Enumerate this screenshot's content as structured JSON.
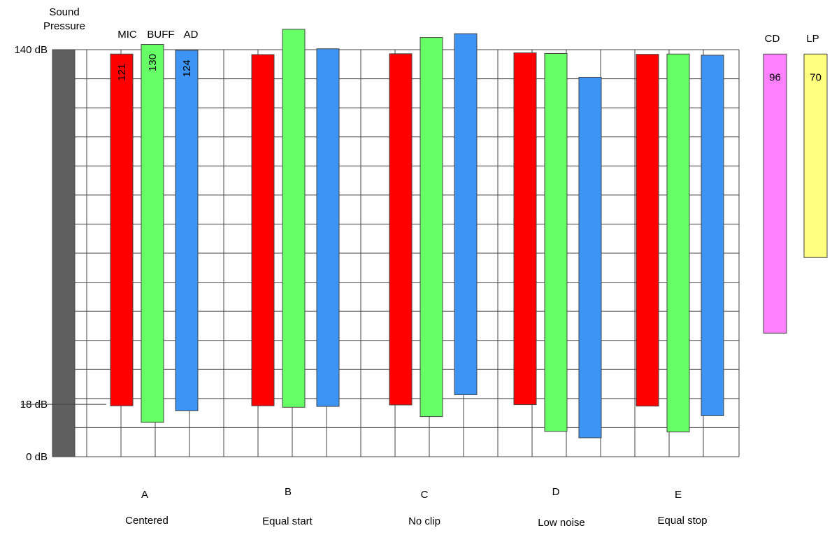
{
  "chart_data": {
    "type": "bar",
    "title": "Sound Pressure",
    "axis": {
      "ymin": 0,
      "ymax": 140,
      "ticks": [
        {
          "value": 140,
          "label": "140 dB"
        },
        {
          "value": 18,
          "label": "18 dB"
        },
        {
          "value": 0,
          "label": "0 dB"
        }
      ],
      "grid": true
    },
    "series": [
      {
        "name": "MIC",
        "color": "#ff0000"
      },
      {
        "name": "BUFF",
        "color": "#66ff66"
      },
      {
        "name": "AD",
        "color": "#3d94f5"
      }
    ],
    "groups": [
      {
        "letter": "A",
        "label": "Centered",
        "ranges": [
          {
            "low": 17.5,
            "high": 138.5,
            "range_label": "121"
          },
          {
            "low": 11.8,
            "high": 141.8,
            "range_label": "130"
          },
          {
            "low": 15.8,
            "high": 139.8,
            "range_label": "124"
          }
        ]
      },
      {
        "letter": "B",
        "label": "Equal start",
        "ranges": [
          {
            "low": 17.5,
            "high": 138.3
          },
          {
            "low": 17.0,
            "high": 147.0
          },
          {
            "low": 17.3,
            "high": 140.3
          }
        ]
      },
      {
        "letter": "C",
        "label": "No clip",
        "ranges": [
          {
            "low": 17.8,
            "high": 138.6
          },
          {
            "low": 13.8,
            "high": 144.2
          },
          {
            "low": 21.3,
            "high": 145.5
          }
        ]
      },
      {
        "letter": "D",
        "label": "Low noise",
        "ranges": [
          {
            "low": 17.9,
            "high": 138.9
          },
          {
            "low": 8.7,
            "high": 138.7
          },
          {
            "low": 6.5,
            "high": 130.5
          }
        ]
      },
      {
        "letter": "E",
        "label": "Equal stop",
        "ranges": [
          {
            "low": 17.4,
            "high": 138.4
          },
          {
            "low": 8.5,
            "high": 138.5
          },
          {
            "low": 14.1,
            "high": 138.1
          }
        ]
      }
    ],
    "references": [
      {
        "name": "CD",
        "value_label": "96",
        "low": 42.5,
        "high": 138.5,
        "color": "#ff80ff"
      },
      {
        "name": "LP",
        "value_label": "70",
        "low": 68.5,
        "high": 138.5,
        "color": "#ffff80"
      }
    ]
  }
}
